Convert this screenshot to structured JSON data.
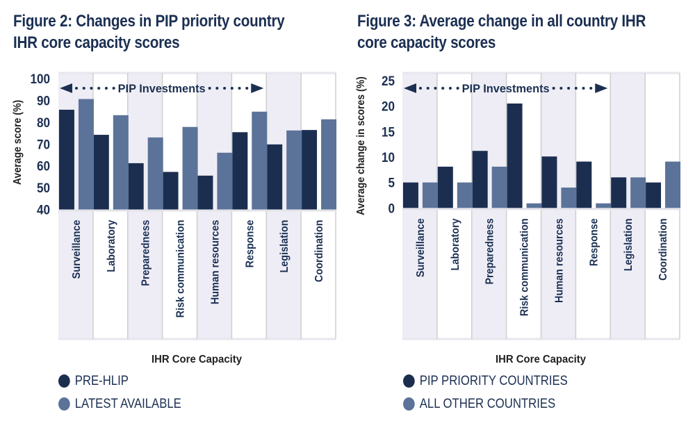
{
  "colors": {
    "dark": "#1c2e50",
    "light": "#5b7399",
    "band": "#eeedf5",
    "grid": "#cfcfcf",
    "text": "#1b2f52"
  },
  "chart_data": [
    {
      "type": "bar",
      "title": "Figure 2: Changes in PIP priority country IHR core capacity scores",
      "title_lines": [
        "Figure 2: Changes in PIP priority country",
        "IHR core capacity scores"
      ],
      "xlabel": "IHR Core Capacity",
      "ylabel": "Average score (%)",
      "ylim": [
        40,
        100
      ],
      "yticks": [
        40,
        50,
        60,
        70,
        80,
        90,
        100
      ],
      "annotation": "PIP Investments",
      "annotation_span": [
        "Surveillance",
        "Response"
      ],
      "categories": [
        "Surveillance",
        "Laboratory",
        "Preparedness",
        "Risk communication",
        "Human resources",
        "Response",
        "Legislation",
        "Coordination"
      ],
      "shaded_categories": [
        "Surveillance",
        "Preparedness",
        "Human resources",
        "Legislation"
      ],
      "series": [
        {
          "name": "PRE-HLIP",
          "color_key": "dark",
          "values": [
            85.7,
            74.2,
            61.2,
            57.2,
            55.5,
            75.4,
            69.8,
            76.4
          ]
        },
        {
          "name": "LATEST AVAILABLE",
          "color_key": "light",
          "values": [
            90.6,
            83.2,
            73.0,
            77.8,
            66.0,
            84.8,
            76.2,
            81.3
          ]
        }
      ],
      "legend_position": "bottom-left"
    },
    {
      "type": "bar",
      "title": "Figure 3: Average change in all country IHR core capacity scores",
      "title_lines": [
        "Figure 3: Average change in all country IHR",
        "core capacity scores"
      ],
      "xlabel": "IHR Core Capacity",
      "ylabel": "Average change in scores (%)",
      "ylim": [
        0,
        25
      ],
      "yticks": [
        0,
        5,
        10,
        15,
        20,
        25
      ],
      "annotation": "PIP Investments",
      "annotation_span": [
        "Surveillance",
        "Response"
      ],
      "categories": [
        "Surveillance",
        "Laboratory",
        "Preparedness",
        "Risk communication",
        "Human resources",
        "Response",
        "Legislation",
        "Coordination"
      ],
      "shaded_categories": [
        "Surveillance",
        "Preparedness",
        "Human resources",
        "Legislation"
      ],
      "series": [
        {
          "name": "PIP PRIORITY COUNTRIES",
          "color_key": "dark",
          "values": [
            5.0,
            8.1,
            11.2,
            20.5,
            10.1,
            9.1,
            6.0,
            5.0
          ]
        },
        {
          "name": "ALL OTHER COUNTRIES",
          "color_key": "light",
          "values": [
            5.0,
            5.0,
            8.1,
            0.9,
            4.0,
            0.9,
            6.0,
            9.1
          ]
        }
      ],
      "legend_position": "bottom-left"
    }
  ]
}
